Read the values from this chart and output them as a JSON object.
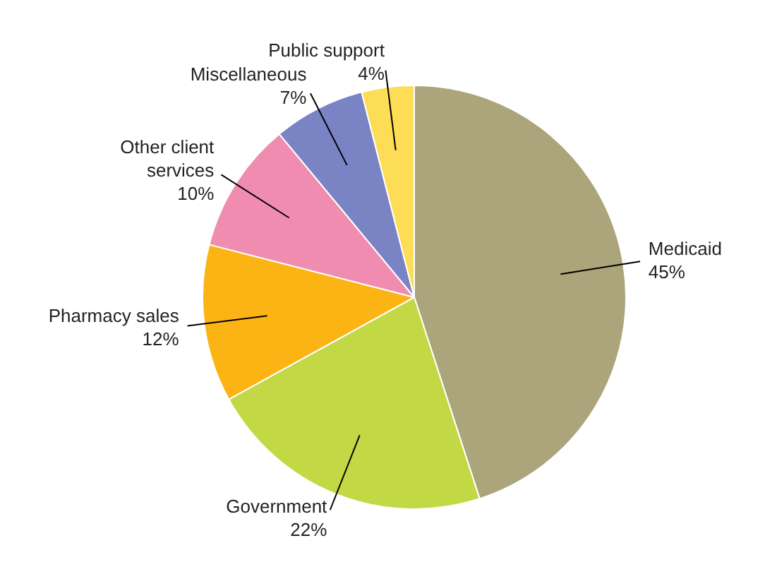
{
  "chart_data": {
    "type": "pie",
    "categories": [
      "Medicaid",
      "Government",
      "Pharmacy sales",
      "Other client services",
      "Miscellaneous",
      "Public support"
    ],
    "values": [
      45,
      22,
      12,
      10,
      7,
      4
    ],
    "value_labels": [
      "45%",
      "22%",
      "12%",
      "10%",
      "7%",
      "4%"
    ],
    "colors": [
      "#aca47a",
      "#c2d844",
      "#fcb415",
      "#f08cb0",
      "#7a84c4",
      "#fddd55"
    ]
  }
}
